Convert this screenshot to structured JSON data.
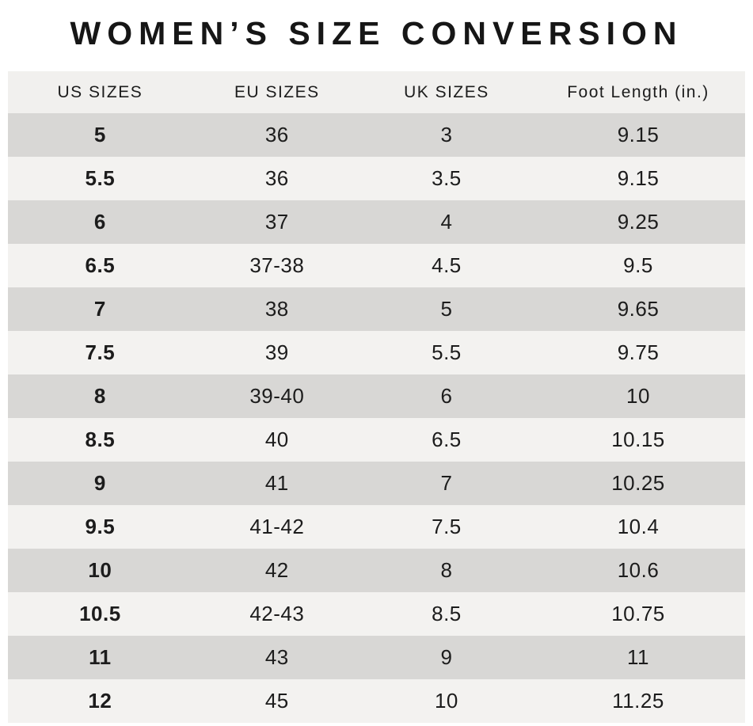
{
  "page": {
    "title": "WOMEN’S SIZE CONVERSION"
  },
  "table": {
    "columns": [
      "US SIZES",
      "EU SIZES",
      "UK SIZES",
      "Foot Length (in.)"
    ],
    "rows": [
      [
        "5",
        "36",
        "3",
        "9.15"
      ],
      [
        "5.5",
        "36",
        "3.5",
        "9.15"
      ],
      [
        "6",
        "37",
        "4",
        "9.25"
      ],
      [
        "6.5",
        "37-38",
        "4.5",
        "9.5"
      ],
      [
        "7",
        "38",
        "5",
        "9.65"
      ],
      [
        "7.5",
        "39",
        "5.5",
        "9.75"
      ],
      [
        "8",
        "39-40",
        "6",
        "10"
      ],
      [
        "8.5",
        "40",
        "6.5",
        "10.15"
      ],
      [
        "9",
        "41",
        "7",
        "10.25"
      ],
      [
        "9.5",
        "41-42",
        "7.5",
        "10.4"
      ],
      [
        "10",
        "42",
        "8",
        "10.6"
      ],
      [
        "10.5",
        "42-43",
        "8.5",
        "10.75"
      ],
      [
        "11",
        "43",
        "9",
        "11"
      ],
      [
        "12",
        "45",
        "10",
        "11.25"
      ]
    ]
  },
  "colors": {
    "row_dark": "#d8d7d5",
    "row_light": "#f3f2f0",
    "header_bg": "#f1f0ee",
    "text": "#1c1c1c",
    "background": "#ffffff"
  }
}
